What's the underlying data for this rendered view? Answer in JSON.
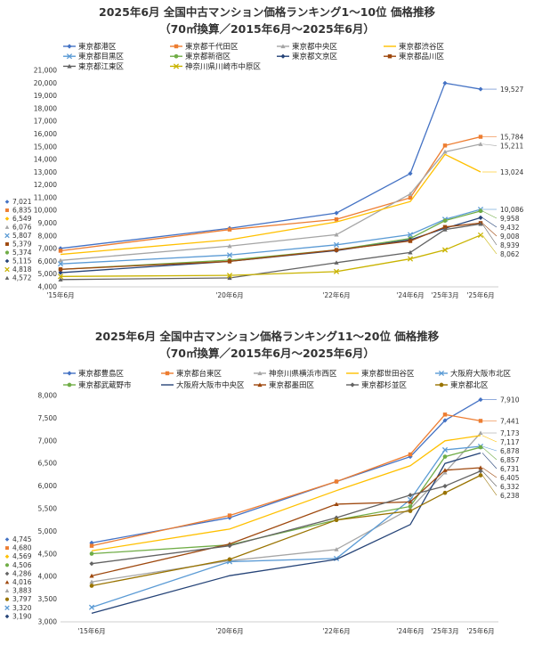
{
  "chart_data": [
    {
      "type": "line",
      "title": "2025年6月 全国中古マンション価格ランキング1～10位 価格推移",
      "subtitle": "（70㎡換算／2015年6月～2025年6月）",
      "x": [
        "'15年6月",
        "'20年6月",
        "'22年6月",
        "'24年6月",
        "'25年3月",
        "'25年6月"
      ],
      "xlabels": [
        "'15年6月",
        "'20年6月",
        "'22年6月",
        "'24年6月",
        "'25年3月",
        "'25年6月"
      ],
      "ylim": [
        4000,
        21000
      ],
      "ystep": 1000,
      "yticks": [
        "4,000",
        "5,000",
        "6,000",
        "7,000",
        "8,000",
        "9,000",
        "10,000",
        "11,000",
        "12,000",
        "13,000",
        "14,000",
        "15,000",
        "16,000",
        "17,000",
        "18,000",
        "19,000",
        "20,000",
        "21,000"
      ],
      "series": [
        {
          "name": "東京都港区",
          "color": "#4472c4",
          "marker": "diamond",
          "values": [
            7021,
            8600,
            9800,
            12900,
            20000,
            19527
          ],
          "start_label": "7,021",
          "end_label": "19,527"
        },
        {
          "name": "東京都千代田区",
          "color": "#ed7d31",
          "marker": "square",
          "values": [
            6835,
            8500,
            9300,
            11000,
            15100,
            15784
          ],
          "start_label": "6,835",
          "end_label": "15,784"
        },
        {
          "name": "東京都中央区",
          "color": "#a5a5a5",
          "marker": "triangle",
          "values": [
            6076,
            7200,
            8100,
            11300,
            14600,
            15211
          ],
          "start_label": "6,076",
          "end_label": "15,211"
        },
        {
          "name": "東京都渋谷区",
          "color": "#ffc000",
          "marker": "none",
          "values": [
            6549,
            7700,
            9100,
            10700,
            14400,
            13024
          ],
          "start_label": "6,549",
          "end_label": "13,024"
        },
        {
          "name": "東京都目黒区",
          "color": "#5b9bd5",
          "marker": "x",
          "values": [
            5807,
            6500,
            7300,
            8100,
            9300,
            10086
          ],
          "start_label": "5,807",
          "end_label": "10,086"
        },
        {
          "name": "東京都新宿区",
          "color": "#70ad47",
          "marker": "circle",
          "values": [
            5374,
            6100,
            6900,
            7800,
            9200,
            9958
          ],
          "start_label": "5,374",
          "end_label": "9,958"
        },
        {
          "name": "東京都文京区",
          "color": "#264478",
          "marker": "diamond",
          "values": [
            5115,
            6000,
            6850,
            7700,
            8600,
            9432
          ],
          "start_label": "5,115",
          "end_label": "9,432"
        },
        {
          "name": "東京都品川区",
          "color": "#9e480e",
          "marker": "square",
          "values": [
            5379,
            6000,
            6900,
            7600,
            8700,
            9008
          ],
          "start_label": "5,379",
          "end_label": "9,008"
        },
        {
          "name": "東京都江東区",
          "color": "#636363",
          "marker": "triangle",
          "values": [
            4572,
            4700,
            5900,
            6700,
            8500,
            8939
          ],
          "start_label": "4,572",
          "end_label": "8,939"
        },
        {
          "name": "神奈川県川崎市中原区",
          "color": "#c9b300",
          "marker": "x",
          "values": [
            4818,
            4900,
            5200,
            6200,
            6900,
            8062
          ],
          "start_label": "4,818",
          "end_label": "8,062"
        }
      ]
    },
    {
      "type": "line",
      "title": "2025年6月 全国中古マンション価格ランキング11～20位 価格推移",
      "subtitle": "（70㎡換算／2015年6月～2025年6月）",
      "x": [
        "'15年6月",
        "'20年6月",
        "'22年6月",
        "'24年6月",
        "'25年3月",
        "'25年6月"
      ],
      "xlabels": [
        "'15年6月",
        "'20年6月",
        "'22年6月",
        "'24年6月",
        "'25年3月",
        "'25年6月"
      ],
      "ylim": [
        3000,
        8000
      ],
      "ystep": 500,
      "yticks": [
        "3,000",
        "3,500",
        "4,000",
        "4,500",
        "5,000",
        "5,500",
        "6,000",
        "6,500",
        "7,000",
        "7,500",
        "8,000"
      ],
      "series": [
        {
          "name": "東京都豊島区",
          "color": "#4472c4",
          "marker": "diamond",
          "values": [
            4745,
            5300,
            6100,
            6650,
            7450,
            7910
          ],
          "start_label": "4,745",
          "end_label": "7,910"
        },
        {
          "name": "東京都台東区",
          "color": "#ed7d31",
          "marker": "square",
          "values": [
            4680,
            5350,
            6100,
            6700,
            7580,
            7441
          ],
          "start_label": "4,680",
          "end_label": "7,441"
        },
        {
          "name": "神奈川県横浜市西区",
          "color": "#a5a5a5",
          "marker": "triangle",
          "values": [
            3883,
            4350,
            4600,
            5500,
            6300,
            7173
          ],
          "start_label": "3,883",
          "end_label": "7,173"
        },
        {
          "name": "東京都世田谷区",
          "color": "#ffc000",
          "marker": "none",
          "values": [
            4569,
            5050,
            5900,
            6450,
            7000,
            7117
          ],
          "start_label": "4,569",
          "end_label": "7,117"
        },
        {
          "name": "大阪府大阪市北区",
          "color": "#5b9bd5",
          "marker": "x",
          "values": [
            3320,
            4330,
            4400,
            5700,
            6800,
            6878
          ],
          "start_label": "3,320",
          "end_label": "6,878"
        },
        {
          "name": "東京都武蔵野市",
          "color": "#70ad47",
          "marker": "circle",
          "values": [
            4506,
            4700,
            5250,
            5550,
            6650,
            6857
          ],
          "start_label": "4,506",
          "end_label": "6,857"
        },
        {
          "name": "大阪府大阪市中央区",
          "color": "#264478",
          "marker": "none",
          "values": [
            3190,
            4020,
            4380,
            5150,
            6500,
            6731
          ],
          "start_label": "3,190",
          "end_label": "6,731"
        },
        {
          "name": "東京都墨田区",
          "color": "#9e480e",
          "marker": "triangle",
          "values": [
            4016,
            4720,
            5600,
            5650,
            6350,
            6405
          ],
          "start_label": "4,016",
          "end_label": "6,405"
        },
        {
          "name": "東京都杉並区",
          "color": "#636363",
          "marker": "diamond",
          "values": [
            4286,
            4680,
            5300,
            5800,
            6000,
            6332
          ],
          "start_label": "4,286",
          "end_label": "6,332"
        },
        {
          "name": "東京都北区",
          "color": "#997300",
          "marker": "circle",
          "values": [
            3797,
            4380,
            5250,
            5450,
            5850,
            6238
          ],
          "start_label": "3,797",
          "end_label": "6,238"
        }
      ]
    }
  ]
}
